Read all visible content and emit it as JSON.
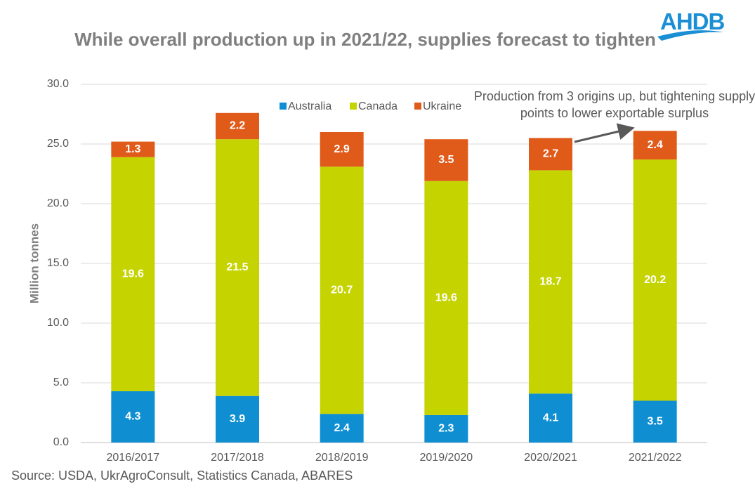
{
  "chart_data": {
    "type": "stacked_bar",
    "title": "While overall production up in 2021/22, supplies forecast to tighten",
    "y_label": "Million tonnes",
    "source": "Source: USDA, UkrAgroConsult, Statistics Canada, ABARES",
    "annotation": "Production from 3 origins up, but tightening supply points to lower exportable surplus",
    "logo": "AHDB",
    "categories": [
      "2016/2017",
      "2017/2018",
      "2018/2019",
      "2019/2020",
      "2020/2021",
      "2021/2022"
    ],
    "series": [
      {
        "name": "Australia",
        "color": "#0f8fd2",
        "values": [
          4.3,
          3.9,
          2.4,
          2.3,
          4.1,
          3.5
        ]
      },
      {
        "name": "Canada",
        "color": "#c5d300",
        "values": [
          19.6,
          21.5,
          20.7,
          19.6,
          18.7,
          20.2
        ]
      },
      {
        "name": "Ukraine",
        "color": "#e05a1a",
        "values": [
          1.3,
          2.2,
          2.9,
          3.5,
          2.7,
          2.4
        ]
      }
    ],
    "ylim": [
      0,
      30
    ],
    "yticks": [
      {
        "value": 0,
        "label": "0.0"
      },
      {
        "value": 5,
        "label": "5.0"
      },
      {
        "value": 10,
        "label": "10.0"
      },
      {
        "value": 15,
        "label": "15.0"
      },
      {
        "value": 20,
        "label": "20.0"
      },
      {
        "value": 25,
        "label": "25.0"
      },
      {
        "value": 30,
        "label": "30.0"
      }
    ],
    "grid": true,
    "legend": "top"
  }
}
